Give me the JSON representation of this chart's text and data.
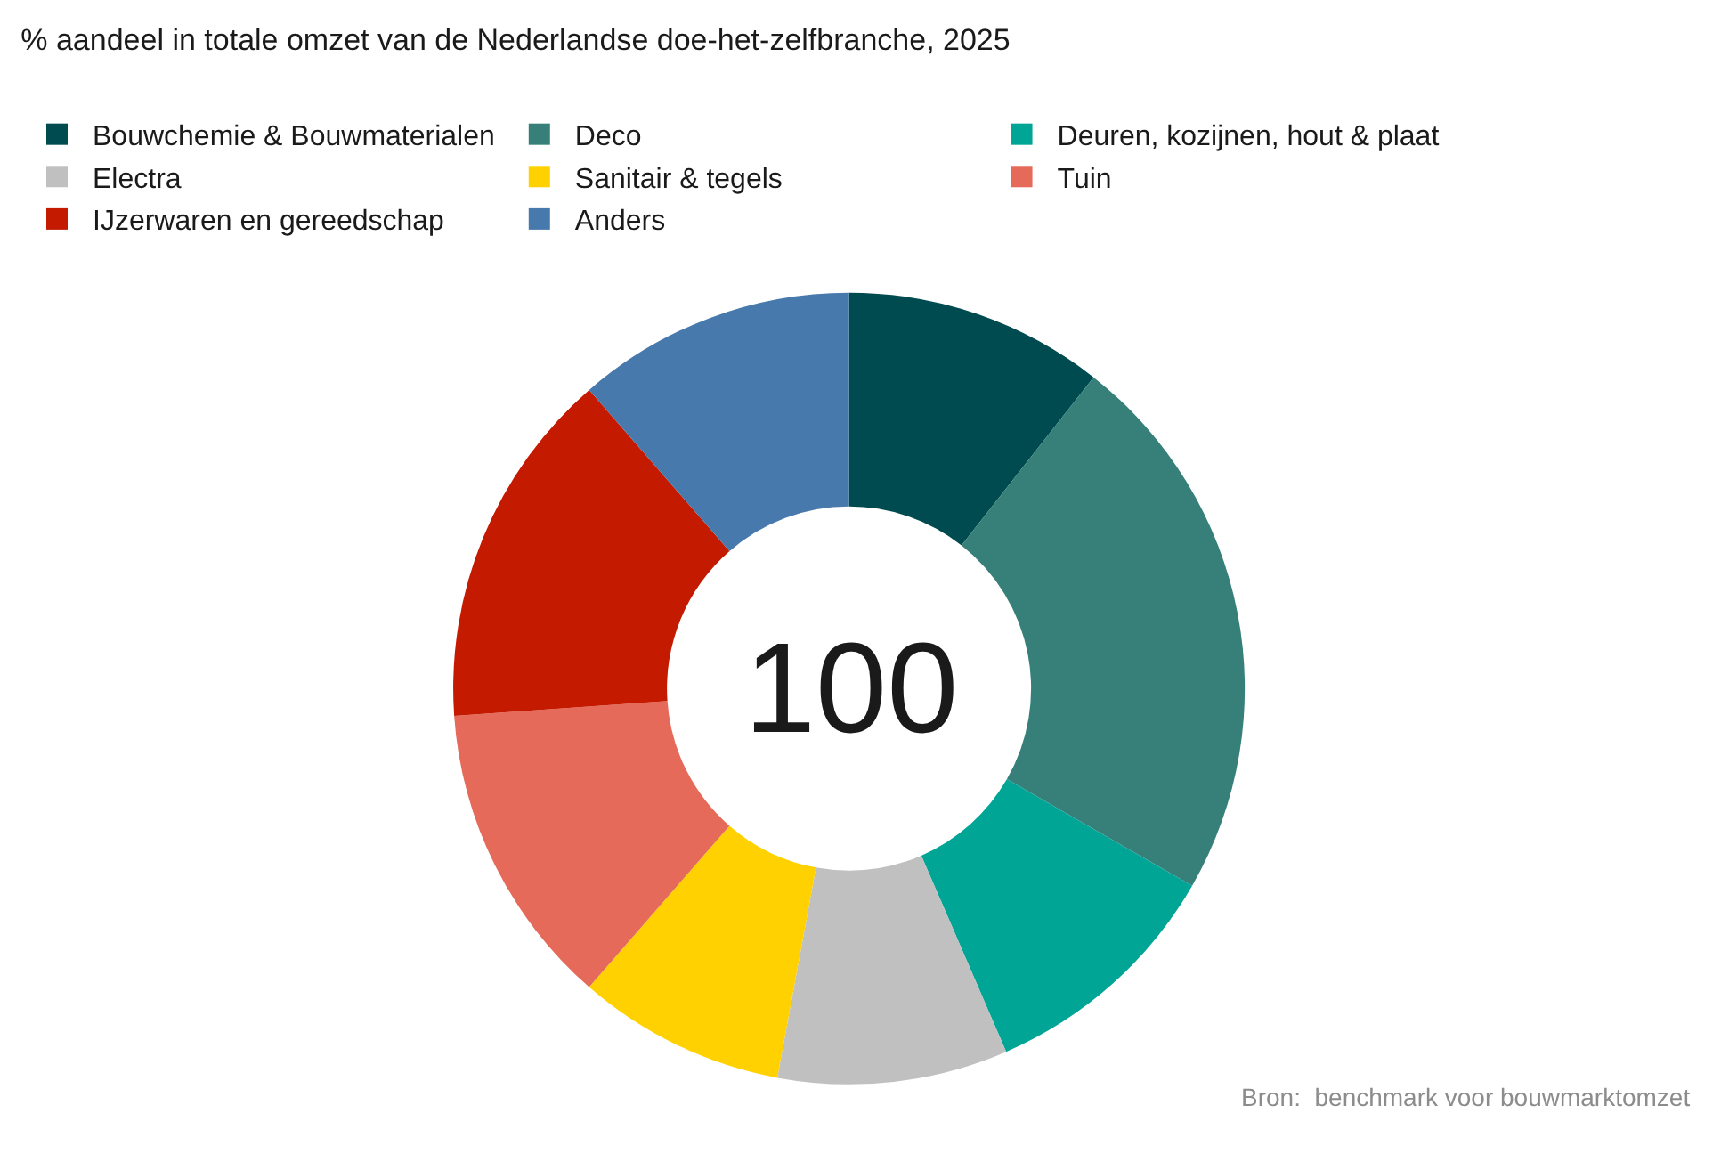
{
  "chart_data": {
    "type": "donut",
    "title": "% aandeel in totale omzet van de Nederlandse doe-het-zelfbranche, 2025",
    "categories": [
      "Bouwchemie & Bouwmaterialen",
      "Deco",
      "Deuren, kozijnen, hout & plaat",
      "Electra",
      "Sanitair & tegels",
      "Tuin",
      "IJzerwaren en gereedschap",
      "Anders"
    ],
    "values": [
      10.6,
      22.7,
      10.2,
      9.4,
      8.5,
      12.5,
      14.7,
      11.4
    ],
    "colors": [
      "#004b4f",
      "#37807a",
      "#00a596",
      "#c0c0c0",
      "#ffd100",
      "#e56a5a",
      "#c31a00",
      "#4779ad"
    ],
    "legend": "top left",
    "annotations": [
      "100",
      "Bron:  benchmark voor bouwmarktomzet"
    ]
  }
}
